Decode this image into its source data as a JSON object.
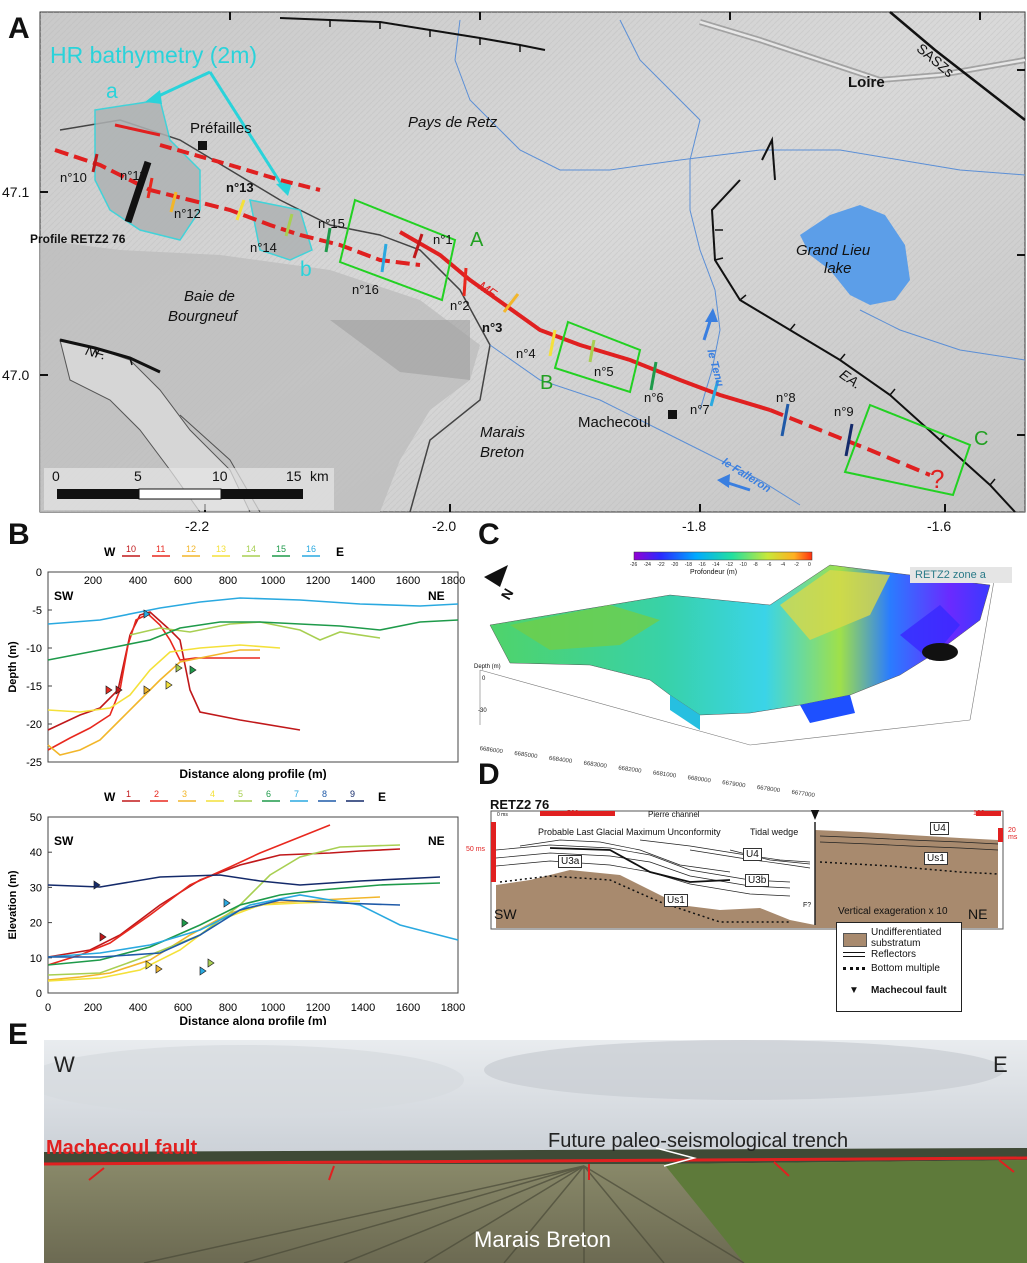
{
  "panels": {
    "a": "A",
    "b": "B",
    "c": "C",
    "d": "D",
    "e": "E"
  },
  "map": {
    "hr_label": "HR bathymetry (2m)",
    "zone_a": "a",
    "zone_b": "b",
    "places": {
      "prefailles": "Préfailles",
      "pays_de_retz": "Pays de Retz",
      "loire": "Loire",
      "saszs": "SASZs",
      "grand_lieu_1": "Grand Lieu",
      "grand_lieu_2": "lake",
      "baie_1": "Baie de",
      "baie_2": "Bourgneuf",
      "marais_1": "Marais",
      "marais_2": "Breton",
      "machecoul": "Machecoul",
      "tenu": "le Tenu",
      "falleron": "le Falleron",
      "profile": "Profile RETZ2 76",
      "mf": "MF.",
      "nf": "NF.",
      "ea": "EA.",
      "question": "?"
    },
    "boxes": {
      "a": "A",
      "b": "B",
      "c": "C"
    },
    "sites": [
      "n°1",
      "n°2",
      "n°3",
      "n°4",
      "n°5",
      "n°6",
      "n°7",
      "n°8",
      "n°9",
      "n°10",
      "n°11",
      "n°12",
      "n°13",
      "n°14",
      "n°15",
      "n°16"
    ],
    "lat_ticks": [
      "47.1",
      "47.0"
    ],
    "lon_ticks": [
      "-2.2",
      "-2.0",
      "-1.8",
      "-1.6"
    ],
    "scale": {
      "ticks": [
        "0",
        "5",
        "10",
        "15"
      ],
      "unit": "km"
    },
    "colors": {
      "fault": "#e02020",
      "box": "#22d122",
      "hr": "#2ad3da",
      "lake": "#5c9ee8"
    }
  },
  "chart_b_top": {
    "legend_w": "W",
    "legend_e": "E",
    "series": [
      {
        "name": "10",
        "color": "#c0181a"
      },
      {
        "name": "11",
        "color": "#e8281e"
      },
      {
        "name": "12",
        "color": "#f2b62a"
      },
      {
        "name": "13",
        "color": "#f4e13a"
      },
      {
        "name": "14",
        "color": "#a8cf52"
      },
      {
        "name": "15",
        "color": "#1e9a4a"
      },
      {
        "name": "16",
        "color": "#2aa9e0"
      }
    ],
    "sw": "SW",
    "ne": "NE",
    "xlabel": "Distance along profile (m)",
    "ylabel": "Depth (m)",
    "x_ticks": [
      "200",
      "400",
      "600",
      "800",
      "1000",
      "1200",
      "1400",
      "1600",
      "1800"
    ],
    "y_ticks": [
      "0",
      "-5",
      "-10",
      "-15",
      "-20",
      "-25"
    ]
  },
  "chart_b_bottom": {
    "legend_w": "W",
    "legend_e": "E",
    "series": [
      {
        "name": "1",
        "color": "#c0181a"
      },
      {
        "name": "2",
        "color": "#e8281e"
      },
      {
        "name": "3",
        "color": "#f2b62a"
      },
      {
        "name": "4",
        "color": "#f4e13a"
      },
      {
        "name": "5",
        "color": "#a8cf52"
      },
      {
        "name": "6",
        "color": "#1e9a4a"
      },
      {
        "name": "7",
        "color": "#2aa9e0"
      },
      {
        "name": "8",
        "color": "#1f5aa8"
      },
      {
        "name": "9",
        "color": "#142a6a"
      }
    ],
    "sw": "SW",
    "ne": "NE",
    "xlabel": "Distance along profile (m)",
    "ylabel": "Elevation (m)",
    "x_ticks": [
      "0",
      "200",
      "400",
      "600",
      "800",
      "1000",
      "1200",
      "1400",
      "1600",
      "1800"
    ],
    "y_ticks": [
      "50",
      "40",
      "30",
      "20",
      "10",
      "0"
    ]
  },
  "panel_c": {
    "colorbar_title": "Profondeur (m)",
    "colorbar_ticks": [
      "-26",
      "-24",
      "-22",
      "-20",
      "-18",
      "-16",
      "-14",
      "-12",
      "-10",
      "-8",
      "-6",
      "-4",
      "-2",
      "0"
    ],
    "zone_label": "RETZ2 zone a",
    "north": "N",
    "depth_label": "Depth (m)",
    "depth_ticks": [
      "0",
      "-30"
    ],
    "easting_ticks": [
      "6686000",
      "6685000",
      "6684000",
      "6683000",
      "6682000",
      "6681000",
      "6680000",
      "6679000",
      "6678000",
      "6677000"
    ]
  },
  "panel_d": {
    "title": "RETZ2 76",
    "ms0": "0 ms",
    "scale_500": "500m",
    "scale_100": "100m",
    "ms50": "50 ms",
    "ms20": "20 ms",
    "pierre": "Pierre channel",
    "lgm": "Probable Last Glacial Maximum Unconformity",
    "tidal": "Tidal wedge",
    "units": {
      "u3a": "U3a",
      "u4a": "U4",
      "u3b": "U3b",
      "us1a": "Us1",
      "u4b": "U4",
      "us1b": "Us1",
      "f": "F?"
    },
    "sw": "SW",
    "ne": "NE",
    "vert": "Vertical exageration x 10",
    "legend": {
      "substratum": "Undifferentiated substratum",
      "reflectors": "Reflectors",
      "multiple": "Bottom multiple",
      "fault": "Machecoul fault"
    }
  },
  "panel_e": {
    "w": "W",
    "e": "E",
    "trench": "Future paleo-seismological trench",
    "fault": "Machecoul fault",
    "marais": "Marais Breton"
  }
}
